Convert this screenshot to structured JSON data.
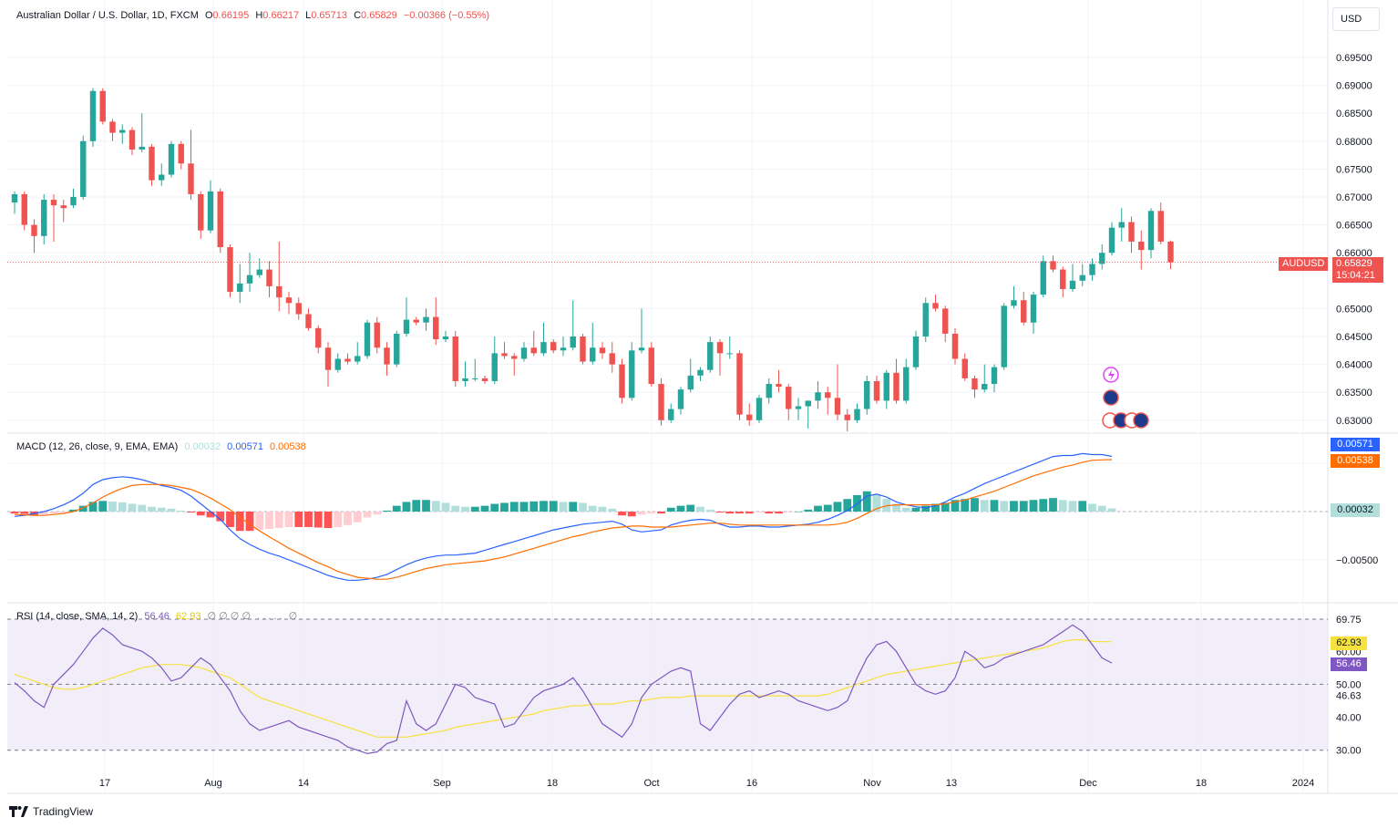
{
  "header": {
    "symbol_title": "Australian Dollar / U.S. Dollar, 1D, FXCM",
    "open_label": "O",
    "open": "0.66195",
    "high_label": "H",
    "high": "0.66217",
    "low_label": "L",
    "low": "0.65713",
    "close_label": "C",
    "close": "0.65829",
    "change": "−0.00366 (−0.55%)"
  },
  "currency_button": "USD",
  "price_tag": {
    "symbol": "AUDUSD",
    "price": "0.65829",
    "countdown": "15:04:21"
  },
  "macd_legend": {
    "title": "MACD (12, 26, close, 9, EMA, EMA)",
    "hist": "0.00032",
    "macd": "0.00571",
    "signal": "0.00538"
  },
  "rsi_legend": {
    "title": "RSI (14, close, SMA, 14, 2)",
    "rsi": "56.46",
    "ma": "62.93",
    "extra": "∅ ∅ ∅ ∅",
    "extra2": "∅"
  },
  "macd_tags": {
    "macd": "0.00571",
    "signal": "0.00538",
    "hist": "0.00032"
  },
  "rsi_tags": {
    "ma": "62.93",
    "rsi": "56.46"
  },
  "brand": "TradingView",
  "colors": {
    "up": "#26a69a",
    "down": "#ef5350",
    "macd": "#2962ff",
    "signal": "#ff6d00",
    "hist_up_strong": "#26a69a",
    "hist_up_weak": "#b2dfdb",
    "hist_down_strong": "#ff5252",
    "hist_down_weak": "#ffcdd2",
    "rsi": "#7e57c2",
    "rsi_ma": "#f7e13f",
    "rsi_band": "#ede7f6"
  },
  "chart_data": {
    "type": "candlestick",
    "price_axis_ticks": [
      "0.69500",
      "0.69000",
      "0.68500",
      "0.68000",
      "0.67500",
      "0.67000",
      "0.66500",
      "0.66000",
      "0.65000",
      "0.64500",
      "0.64000",
      "0.63500",
      "0.63000"
    ],
    "macd_axis_ticks": [
      "-0.00500"
    ],
    "rsi_axis_ticks": [
      "69.75",
      "60.00",
      "50.00",
      "46.63",
      "40.00",
      "30.00"
    ],
    "x_tick_labels": [
      "17",
      "Aug",
      "14",
      "Sep",
      "18",
      "Oct",
      "16",
      "Nov",
      "13",
      "Dec",
      "18",
      "2024"
    ],
    "ohlc": [
      [
        0.669,
        0.671,
        0.667,
        0.6705
      ],
      [
        0.6705,
        0.671,
        0.664,
        0.665
      ],
      [
        0.665,
        0.666,
        0.66,
        0.663
      ],
      [
        0.663,
        0.6705,
        0.6615,
        0.6695
      ],
      [
        0.6695,
        0.6705,
        0.662,
        0.6685
      ],
      [
        0.6685,
        0.6695,
        0.6655,
        0.668
      ],
      [
        0.6685,
        0.6715,
        0.668,
        0.67
      ],
      [
        0.67,
        0.681,
        0.6695,
        0.68
      ],
      [
        0.68,
        0.6895,
        0.679,
        0.689
      ],
      [
        0.689,
        0.6895,
        0.683,
        0.6835
      ],
      [
        0.6835,
        0.684,
        0.68,
        0.6815
      ],
      [
        0.6815,
        0.683,
        0.6795,
        0.682
      ],
      [
        0.682,
        0.6825,
        0.6775,
        0.6785
      ],
      [
        0.6785,
        0.685,
        0.678,
        0.679
      ],
      [
        0.679,
        0.6795,
        0.672,
        0.673
      ],
      [
        0.673,
        0.676,
        0.672,
        0.674
      ],
      [
        0.674,
        0.68,
        0.6735,
        0.6795
      ],
      [
        0.6795,
        0.68,
        0.675,
        0.676
      ],
      [
        0.676,
        0.682,
        0.6695,
        0.6705
      ],
      [
        0.6705,
        0.671,
        0.6625,
        0.664
      ],
      [
        0.664,
        0.673,
        0.6635,
        0.671
      ],
      [
        0.671,
        0.6715,
        0.66,
        0.661
      ],
      [
        0.661,
        0.6615,
        0.652,
        0.653
      ],
      [
        0.653,
        0.658,
        0.651,
        0.6545
      ],
      [
        0.6545,
        0.66,
        0.653,
        0.656
      ],
      [
        0.656,
        0.659,
        0.6555,
        0.657
      ],
      [
        0.657,
        0.6585,
        0.652,
        0.654
      ],
      [
        0.654,
        0.662,
        0.6495,
        0.652
      ],
      [
        0.652,
        0.653,
        0.649,
        0.651
      ],
      [
        0.651,
        0.652,
        0.648,
        0.649
      ],
      [
        0.649,
        0.65,
        0.646,
        0.6465
      ],
      [
        0.6465,
        0.647,
        0.642,
        0.643
      ],
      [
        0.643,
        0.644,
        0.636,
        0.639
      ],
      [
        0.639,
        0.642,
        0.6385,
        0.641
      ],
      [
        0.641,
        0.642,
        0.64,
        0.6405
      ],
      [
        0.6405,
        0.644,
        0.64,
        0.6415
      ],
      [
        0.6415,
        0.648,
        0.641,
        0.6475
      ],
      [
        0.6475,
        0.6485,
        0.642,
        0.643
      ],
      [
        0.643,
        0.644,
        0.638,
        0.64
      ],
      [
        0.64,
        0.646,
        0.6395,
        0.6455
      ],
      [
        0.6455,
        0.652,
        0.645,
        0.648
      ],
      [
        0.648,
        0.6485,
        0.647,
        0.6475
      ],
      [
        0.6475,
        0.65,
        0.646,
        0.6485
      ],
      [
        0.6485,
        0.652,
        0.6435,
        0.6445
      ],
      [
        0.6445,
        0.646,
        0.644,
        0.645
      ],
      [
        0.645,
        0.646,
        0.636,
        0.637
      ],
      [
        0.637,
        0.6405,
        0.636,
        0.6375
      ],
      [
        0.6375,
        0.641,
        0.637,
        0.6375
      ],
      [
        0.6375,
        0.638,
        0.6365,
        0.637
      ],
      [
        0.637,
        0.645,
        0.6365,
        0.642
      ],
      [
        0.642,
        0.644,
        0.641,
        0.6415
      ],
      [
        0.6415,
        0.642,
        0.638,
        0.641
      ],
      [
        0.641,
        0.644,
        0.6405,
        0.643
      ],
      [
        0.643,
        0.646,
        0.6415,
        0.642
      ],
      [
        0.642,
        0.6475,
        0.6415,
        0.644
      ],
      [
        0.644,
        0.6445,
        0.642,
        0.6425
      ],
      [
        0.6425,
        0.645,
        0.6415,
        0.643
      ],
      [
        0.643,
        0.6515,
        0.6425,
        0.645
      ],
      [
        0.645,
        0.6455,
        0.64,
        0.6405
      ],
      [
        0.6405,
        0.6475,
        0.64,
        0.643
      ],
      [
        0.643,
        0.644,
        0.641,
        0.642
      ],
      [
        0.642,
        0.644,
        0.6385,
        0.64
      ],
      [
        0.64,
        0.641,
        0.633,
        0.634
      ],
      [
        0.634,
        0.644,
        0.6335,
        0.6425
      ],
      [
        0.6425,
        0.65,
        0.642,
        0.643
      ],
      [
        0.643,
        0.644,
        0.636,
        0.6365
      ],
      [
        0.6365,
        0.6375,
        0.629,
        0.63
      ],
      [
        0.63,
        0.633,
        0.6295,
        0.632
      ],
      [
        0.632,
        0.636,
        0.631,
        0.6355
      ],
      [
        0.6355,
        0.641,
        0.635,
        0.638
      ],
      [
        0.638,
        0.6395,
        0.637,
        0.639
      ],
      [
        0.639,
        0.645,
        0.6385,
        0.644
      ],
      [
        0.644,
        0.6445,
        0.638,
        0.642
      ],
      [
        0.642,
        0.645,
        0.641,
        0.642
      ],
      [
        0.642,
        0.6425,
        0.63,
        0.631
      ],
      [
        0.631,
        0.633,
        0.629,
        0.63
      ],
      [
        0.63,
        0.6345,
        0.6295,
        0.634
      ],
      [
        0.634,
        0.6375,
        0.633,
        0.6365
      ],
      [
        0.6365,
        0.639,
        0.635,
        0.636
      ],
      [
        0.636,
        0.6365,
        0.63,
        0.632
      ],
      [
        0.632,
        0.634,
        0.63,
        0.6325
      ],
      [
        0.6325,
        0.6335,
        0.6285,
        0.6335
      ],
      [
        0.6335,
        0.637,
        0.632,
        0.635
      ],
      [
        0.635,
        0.636,
        0.631,
        0.634
      ],
      [
        0.634,
        0.64,
        0.63,
        0.631
      ],
      [
        0.631,
        0.632,
        0.628,
        0.63
      ],
      [
        0.63,
        0.633,
        0.6295,
        0.632
      ],
      [
        0.632,
        0.638,
        0.631,
        0.637
      ],
      [
        0.637,
        0.638,
        0.633,
        0.6335
      ],
      [
        0.6335,
        0.639,
        0.632,
        0.6385
      ],
      [
        0.6385,
        0.641,
        0.633,
        0.6335
      ],
      [
        0.6335,
        0.641,
        0.633,
        0.6395
      ],
      [
        0.6395,
        0.646,
        0.639,
        0.645
      ],
      [
        0.645,
        0.652,
        0.644,
        0.651
      ],
      [
        0.651,
        0.6525,
        0.6495,
        0.65
      ],
      [
        0.65,
        0.6505,
        0.644,
        0.6455
      ],
      [
        0.6455,
        0.6465,
        0.64,
        0.641
      ],
      [
        0.641,
        0.642,
        0.637,
        0.6375
      ],
      [
        0.6375,
        0.638,
        0.634,
        0.6355
      ],
      [
        0.6355,
        0.64,
        0.635,
        0.6365
      ],
      [
        0.6365,
        0.64,
        0.635,
        0.6395
      ],
      [
        0.6395,
        0.651,
        0.639,
        0.6505
      ],
      [
        0.6505,
        0.654,
        0.65,
        0.6515
      ],
      [
        0.6515,
        0.653,
        0.647,
        0.6475
      ],
      [
        0.6475,
        0.653,
        0.6455,
        0.6525
      ],
      [
        0.6525,
        0.6595,
        0.652,
        0.6585
      ],
      [
        0.6585,
        0.6595,
        0.6565,
        0.657
      ],
      [
        0.657,
        0.6575,
        0.652,
        0.6535
      ],
      [
        0.6535,
        0.658,
        0.653,
        0.655
      ],
      [
        0.655,
        0.658,
        0.654,
        0.656
      ],
      [
        0.656,
        0.659,
        0.655,
        0.658
      ],
      [
        0.658,
        0.6615,
        0.657,
        0.66
      ],
      [
        0.66,
        0.6655,
        0.6595,
        0.6645
      ],
      [
        0.6645,
        0.668,
        0.662,
        0.6655
      ],
      [
        0.6655,
        0.6665,
        0.66,
        0.662
      ],
      [
        0.662,
        0.664,
        0.657,
        0.6605
      ],
      [
        0.6605,
        0.668,
        0.659,
        0.6675
      ],
      [
        0.6675,
        0.669,
        0.6615,
        0.662
      ],
      [
        0.662,
        0.6622,
        0.6571,
        0.6583
      ]
    ],
    "macd_hist": [
      -0.0002,
      -0.00025,
      -0.0004,
      -0.0003,
      -0.0002,
      -0.0001,
      0.0002,
      0.0006,
      0.001,
      0.0011,
      0.00105,
      0.00095,
      0.0008,
      0.0007,
      0.0005,
      0.0004,
      0.0003,
      0.0001,
      -0.0001,
      -0.0004,
      -0.0006,
      -0.001,
      -0.0016,
      -0.002,
      -0.002,
      -0.0019,
      -0.0018,
      -0.0017,
      -0.0016,
      -0.0016,
      -0.0016,
      -0.00165,
      -0.0017,
      -0.0016,
      -0.0014,
      -0.0011,
      -0.0006,
      -0.0003,
      0.0001,
      0.0006,
      0.001,
      0.0012,
      0.0012,
      0.0011,
      0.0009,
      0.0006,
      0.0005,
      0.0005,
      0.0006,
      0.0008,
      0.0009,
      0.001,
      0.001,
      0.00105,
      0.0011,
      0.0011,
      0.001,
      0.001,
      0.0009,
      0.0006,
      0.0005,
      0.0003,
      -0.0004,
      -0.0005,
      -0.0003,
      -0.0002,
      -0.0002,
      0.0004,
      0.0006,
      0.0007,
      0.0005,
      0.0002,
      -0.0001,
      -0.0002,
      -0.0002,
      -0.0002,
      -0.0001,
      -0.0002,
      -0.0002,
      -0.0001,
      0.0,
      0.0002,
      0.0006,
      0.0007,
      0.001,
      0.0013,
      0.0017,
      0.0021,
      0.0018,
      0.0013,
      0.0008,
      0.0004,
      0.0004,
      0.0006,
      0.0008,
      0.0009,
      0.0012,
      0.0013,
      0.0014,
      0.0012,
      0.0012,
      0.0011,
      0.0011,
      0.0011,
      0.0012,
      0.0013,
      0.0014,
      0.0012,
      0.0011,
      0.0011,
      0.0008,
      0.0006,
      0.00032
    ],
    "macd": [
      -0.0005,
      -0.0004,
      -0.0002,
      0.0,
      0.0003,
      0.0007,
      0.0012,
      0.0019,
      0.0028,
      0.0033,
      0.0035,
      0.0036,
      0.0035,
      0.0033,
      0.003,
      0.0027,
      0.0025,
      0.0022,
      0.0016,
      0.0008,
      0.0,
      -0.0008,
      -0.0019,
      -0.0028,
      -0.0034,
      -0.0039,
      -0.0043,
      -0.0046,
      -0.005,
      -0.0054,
      -0.0058,
      -0.0062,
      -0.0066,
      -0.0069,
      -0.0071,
      -0.0071,
      -0.007,
      -0.0068,
      -0.0065,
      -0.006,
      -0.0055,
      -0.0051,
      -0.0048,
      -0.0046,
      -0.0045,
      -0.0045,
      -0.0044,
      -0.0043,
      -0.004,
      -0.0037,
      -0.0034,
      -0.0031,
      -0.0028,
      -0.0025,
      -0.0022,
      -0.0019,
      -0.0017,
      -0.0015,
      -0.0013,
      -0.0012,
      -0.0011,
      -0.001,
      -0.0013,
      -0.0019,
      -0.0021,
      -0.002,
      -0.0019,
      -0.0014,
      -0.0011,
      -0.0009,
      -0.0008,
      -0.0009,
      -0.0013,
      -0.0016,
      -0.0016,
      -0.0015,
      -0.0015,
      -0.0016,
      -0.0016,
      -0.0015,
      -0.0014,
      -0.0013,
      -0.0011,
      -0.0008,
      -0.0004,
      0.0001,
      0.0008,
      0.0016,
      0.0018,
      0.0015,
      0.001,
      0.0007,
      0.0005,
      0.0004,
      0.0006,
      0.001,
      0.0015,
      0.0019,
      0.0024,
      0.0029,
      0.0033,
      0.0037,
      0.0041,
      0.0045,
      0.0049,
      0.0053,
      0.0057,
      0.0058,
      0.0058,
      0.006,
      0.0059,
      0.0059,
      0.00571
    ],
    "signal": [
      -0.0003,
      -0.00035,
      -0.0004,
      -0.0004,
      -0.0003,
      -0.0002,
      0.0,
      0.0004,
      0.0009,
      0.0015,
      0.002,
      0.0024,
      0.0027,
      0.0028,
      0.0028,
      0.0028,
      0.0027,
      0.0025,
      0.0023,
      0.0019,
      0.0014,
      0.0008,
      0.0002,
      -0.0006,
      -0.0013,
      -0.002,
      -0.0026,
      -0.0032,
      -0.0038,
      -0.0043,
      -0.0048,
      -0.0053,
      -0.0057,
      -0.0062,
      -0.0065,
      -0.0068,
      -0.0069,
      -0.007,
      -0.007,
      -0.0068,
      -0.0065,
      -0.0062,
      -0.0059,
      -0.0057,
      -0.0055,
      -0.0054,
      -0.0053,
      -0.0052,
      -0.0051,
      -0.0049,
      -0.0047,
      -0.0044,
      -0.0041,
      -0.0038,
      -0.0035,
      -0.0032,
      -0.0029,
      -0.0026,
      -0.0024,
      -0.0021,
      -0.0019,
      -0.0017,
      -0.0016,
      -0.0015,
      -0.0015,
      -0.0016,
      -0.0016,
      -0.0016,
      -0.0015,
      -0.0014,
      -0.0013,
      -0.0012,
      -0.0012,
      -0.0013,
      -0.0014,
      -0.0014,
      -0.0014,
      -0.0014,
      -0.0014,
      -0.0014,
      -0.0014,
      -0.0014,
      -0.0014,
      -0.0014,
      -0.0013,
      -0.0011,
      -0.0007,
      -0.0002,
      0.0003,
      0.0006,
      0.0007,
      0.0007,
      0.0007,
      0.0007,
      0.0007,
      0.0008,
      0.001,
      0.0012,
      0.0015,
      0.0018,
      0.0021,
      0.0025,
      0.0029,
      0.0033,
      0.0037,
      0.004,
      0.0043,
      0.0046,
      0.0048,
      0.0051,
      0.0053,
      0.00535,
      0.00538
    ],
    "rsi": [
      50.5,
      48,
      45,
      43,
      50,
      53,
      56,
      60,
      64,
      67,
      65,
      62,
      61,
      60,
      58,
      55,
      51,
      52,
      55,
      58,
      56,
      52,
      48,
      42,
      38,
      36,
      37,
      38,
      39,
      37,
      36,
      35,
      34,
      33,
      31,
      30,
      29,
      29.5,
      32,
      33,
      45,
      38,
      36,
      38,
      44,
      50,
      49,
      46,
      45,
      44,
      37,
      38,
      42,
      46,
      48,
      49,
      50,
      52,
      48,
      43,
      38,
      36,
      34,
      38,
      46,
      50,
      52,
      54,
      55,
      54,
      38,
      36,
      40,
      44,
      47,
      48,
      46,
      47,
      48,
      47,
      45,
      44,
      43,
      42,
      43,
      45,
      52,
      58,
      62,
      63,
      60,
      55,
      50,
      48,
      47,
      48,
      52,
      60,
      58,
      55,
      56,
      58,
      59,
      60,
      61,
      62,
      64,
      66,
      68,
      66,
      62,
      58,
      56.46
    ],
    "rsi_ma": [
      53,
      52,
      51,
      50,
      49,
      48.5,
      48.5,
      49,
      50,
      51,
      52,
      53,
      54,
      55,
      55.5,
      56,
      56,
      56,
      55.5,
      55,
      54,
      53,
      52,
      50,
      48,
      46,
      45,
      44,
      43,
      42,
      41,
      40,
      39,
      38,
      37,
      36,
      35,
      34,
      34,
      34,
      34,
      34.5,
      35,
      35.5,
      36,
      37,
      37.5,
      38,
      38.5,
      39,
      39.5,
      40,
      40.5,
      41,
      42,
      42.5,
      43,
      43.5,
      43.5,
      44,
      44,
      44,
      44.5,
      45,
      45,
      45.5,
      46,
      46,
      46,
      46.5,
      46.5,
      46.5,
      46.5,
      46.5,
      46.5,
      46.5,
      46.5,
      46.5,
      46.5,
      46.5,
      46.5,
      46.5,
      46.5,
      47,
      48,
      49,
      50,
      51,
      52,
      53,
      53.5,
      54,
      54.5,
      55,
      55.5,
      56,
      56.5,
      57,
      57.5,
      58,
      58.5,
      59,
      59.5,
      60,
      60.5,
      61,
      62,
      63,
      63.5,
      63.5,
      63,
      62.93,
      62.93
    ]
  }
}
